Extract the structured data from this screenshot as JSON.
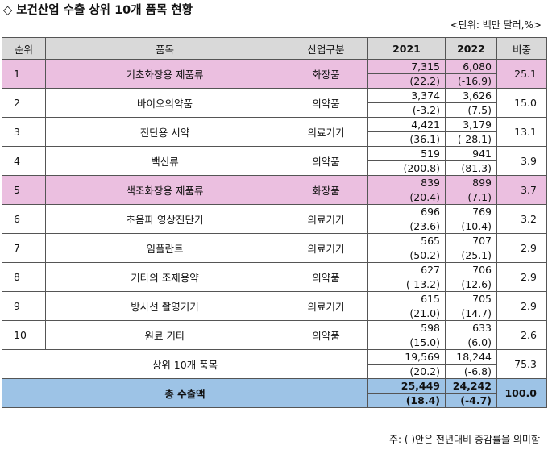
{
  "title": "◇ 보건산업 수출 상위 10개 품목 현황",
  "unit": "<단위: 백만 달러,%>",
  "headers": {
    "rank": "순위",
    "item": "품목",
    "category": "산업구분",
    "y2021": "2021",
    "y2022": "2022",
    "share": "비중"
  },
  "rows": [
    {
      "rank": "1",
      "item": "기초화장용 제품류",
      "category": "화장품",
      "v2021": "7,315",
      "g2021": "(22.2)",
      "v2022": "6,080",
      "g2022": "(-16.9)",
      "share": "25.1",
      "highlight": true
    },
    {
      "rank": "2",
      "item": "바이오의약품",
      "category": "의약품",
      "v2021": "3,374",
      "g2021": "(-3.2)",
      "v2022": "3,626",
      "g2022": "(7.5)",
      "share": "15.0",
      "highlight": false
    },
    {
      "rank": "3",
      "item": "진단용 시약",
      "category": "의료기기",
      "v2021": "4,421",
      "g2021": "(36.1)",
      "v2022": "3,179",
      "g2022": "(-28.1)",
      "share": "13.1",
      "highlight": false
    },
    {
      "rank": "4",
      "item": "백신류",
      "category": "의약품",
      "v2021": "519",
      "g2021": "(200.8)",
      "v2022": "941",
      "g2022": "(81.3)",
      "share": "3.9",
      "highlight": false
    },
    {
      "rank": "5",
      "item": "색조화장용 제품류",
      "category": "화장품",
      "v2021": "839",
      "g2021": "(20.4)",
      "v2022": "899",
      "g2022": "(7.1)",
      "share": "3.7",
      "highlight": true
    },
    {
      "rank": "6",
      "item": "초음파 영상진단기",
      "category": "의료기기",
      "v2021": "696",
      "g2021": "(23.6)",
      "v2022": "769",
      "g2022": "(10.4)",
      "share": "3.2",
      "highlight": false
    },
    {
      "rank": "7",
      "item": "임플란트",
      "category": "의료기기",
      "v2021": "565",
      "g2021": "(50.2)",
      "v2022": "707",
      "g2022": "(25.1)",
      "share": "2.9",
      "highlight": false
    },
    {
      "rank": "8",
      "item": "기타의 조제용약",
      "category": "의약품",
      "v2021": "627",
      "g2021": "(-13.2)",
      "v2022": "706",
      "g2022": "(12.6)",
      "share": "2.9",
      "highlight": false
    },
    {
      "rank": "9",
      "item": "방사선 촬영기기",
      "category": "의료기기",
      "v2021": "615",
      "g2021": "(21.0)",
      "v2022": "705",
      "g2022": "(14.7)",
      "share": "2.9",
      "highlight": false
    },
    {
      "rank": "10",
      "item": "원료 기타",
      "category": "의약품",
      "v2021": "598",
      "g2021": "(15.0)",
      "v2022": "633",
      "g2022": "(6.0)",
      "share": "2.6",
      "highlight": false
    }
  ],
  "subtotal": {
    "label": "상위 10개 품목",
    "v2021": "19,569",
    "g2021": "(20.2)",
    "v2022": "18,244",
    "g2022": "(-6.8)",
    "share": "75.3"
  },
  "total": {
    "label": "총 수출액",
    "v2021": "25,449",
    "g2021": "(18.4)",
    "v2022": "24,242",
    "g2022": "(-4.7)",
    "share": "100.0"
  },
  "note": "주: ( )안은 전년대비 증감률을 의미함",
  "colors": {
    "header_bg": "#d9d9d9",
    "highlight_bg": "#ebbfe0",
    "total_bg": "#9dc3e6"
  }
}
